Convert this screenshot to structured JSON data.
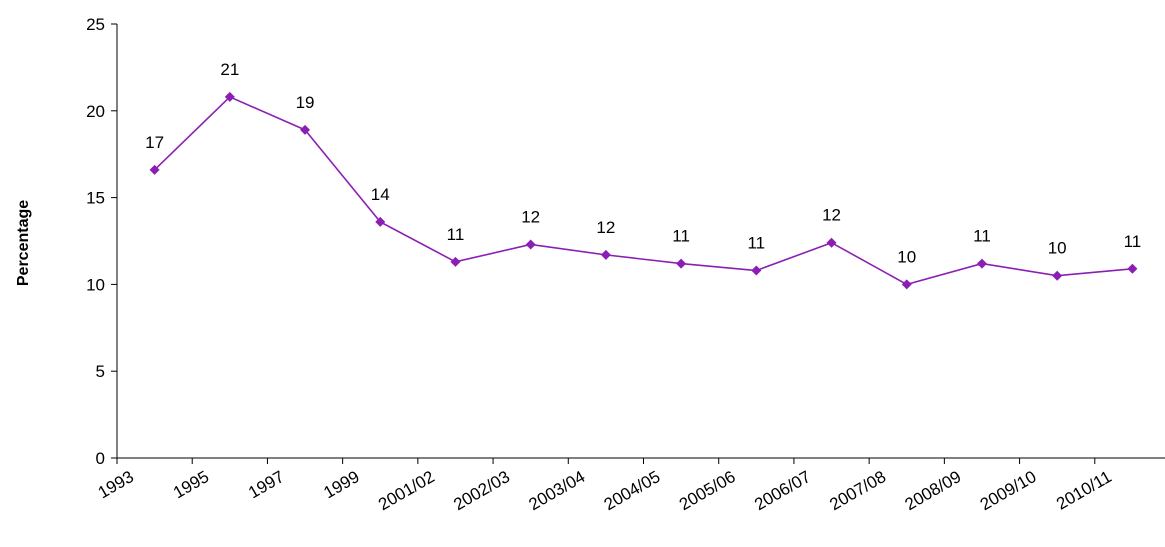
{
  "chart_data": {
    "type": "line",
    "title": "",
    "xlabel": "",
    "ylabel": "Percentage",
    "ylim": [
      0,
      25
    ],
    "yticks": [
      "0",
      "5",
      "10",
      "15",
      "20",
      "25"
    ],
    "categories": [
      "1993",
      "1995",
      "1997",
      "1999",
      "2001/02",
      "2002/03",
      "2003/04",
      "2004/05",
      "2005/06",
      "2006/07",
      "2007/08",
      "2008/09",
      "2009/10",
      "2010/11"
    ],
    "series": [
      {
        "values": [
          16.6,
          20.8,
          18.9,
          13.6,
          11.3,
          12.3,
          11.7,
          11.2,
          10.8,
          12.4,
          10.0,
          11.2,
          10.5,
          10.9
        ],
        "labels": [
          "17",
          "21",
          "19",
          "14",
          "11",
          "12",
          "12",
          "11",
          "11",
          "12",
          "10",
          "11",
          "10",
          "11"
        ],
        "color": "#8B1FB4"
      }
    ],
    "grid": false,
    "legend": "none"
  }
}
